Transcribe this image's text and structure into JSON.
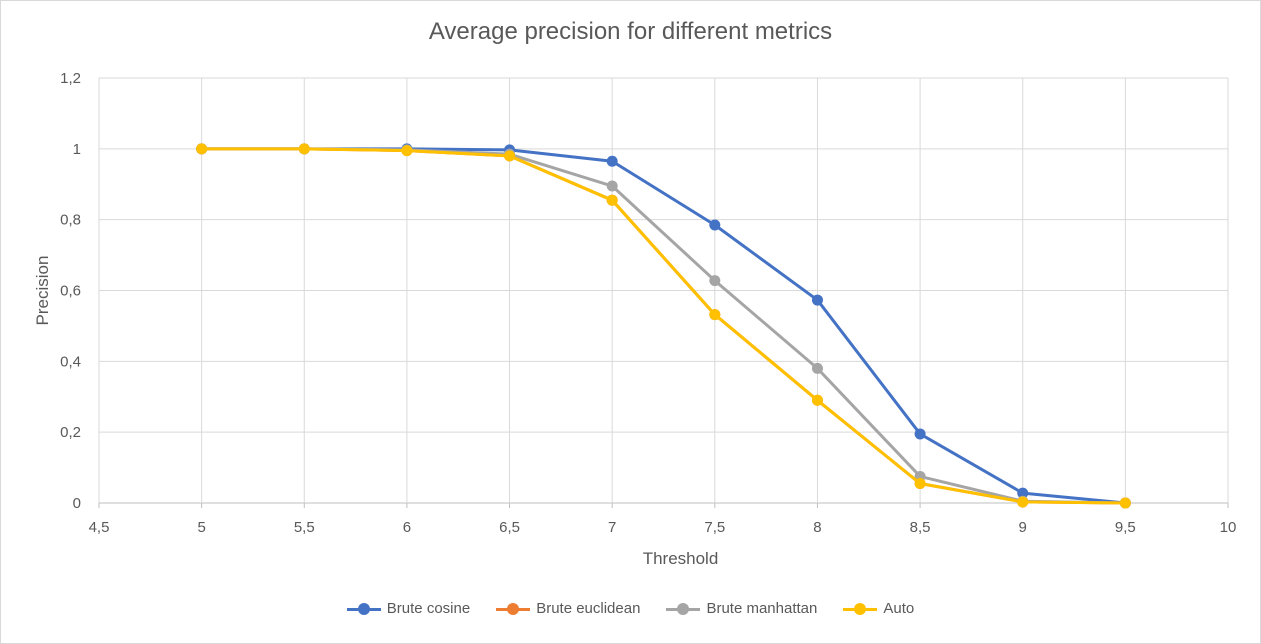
{
  "chart_data": {
    "type": "line",
    "title": "Average precision for different metrics",
    "xlabel": "Threshold",
    "ylabel": "Precision",
    "xlim": [
      4.5,
      10
    ],
    "ylim": [
      0,
      1.2
    ],
    "x_ticks": [
      "4,5",
      "5",
      "5,5",
      "6",
      "6,5",
      "7",
      "7,5",
      "8",
      "8,5",
      "9",
      "9,5",
      "10"
    ],
    "y_ticks": [
      "0",
      "0,2",
      "0,4",
      "0,6",
      "0,8",
      "1",
      "1,2"
    ],
    "grid": true,
    "legend_position": "bottom",
    "x": [
      5,
      5.5,
      6,
      6.5,
      7,
      7.5,
      8,
      8.5,
      9,
      9.5
    ],
    "series": [
      {
        "name": "Brute cosine",
        "color": "#4472c4",
        "values": [
          1.0,
          1.0,
          1.0,
          0.997,
          0.965,
          0.785,
          0.573,
          0.195,
          0.028,
          0.0
        ]
      },
      {
        "name": "Brute euclidean",
        "color": "#ed7d31",
        "values": [
          1.0,
          1.0,
          0.995,
          0.98,
          0.855,
          0.532,
          0.29,
          0.055,
          0.003,
          0.0
        ]
      },
      {
        "name": "Brute manhattan",
        "color": "#a5a5a5",
        "values": [
          1.0,
          1.0,
          0.997,
          0.985,
          0.895,
          0.628,
          0.38,
          0.075,
          0.005,
          0.0
        ]
      },
      {
        "name": "Auto",
        "color": "#ffc000",
        "values": [
          1.0,
          1.0,
          0.995,
          0.98,
          0.855,
          0.532,
          0.29,
          0.055,
          0.003,
          0.0
        ]
      }
    ]
  }
}
